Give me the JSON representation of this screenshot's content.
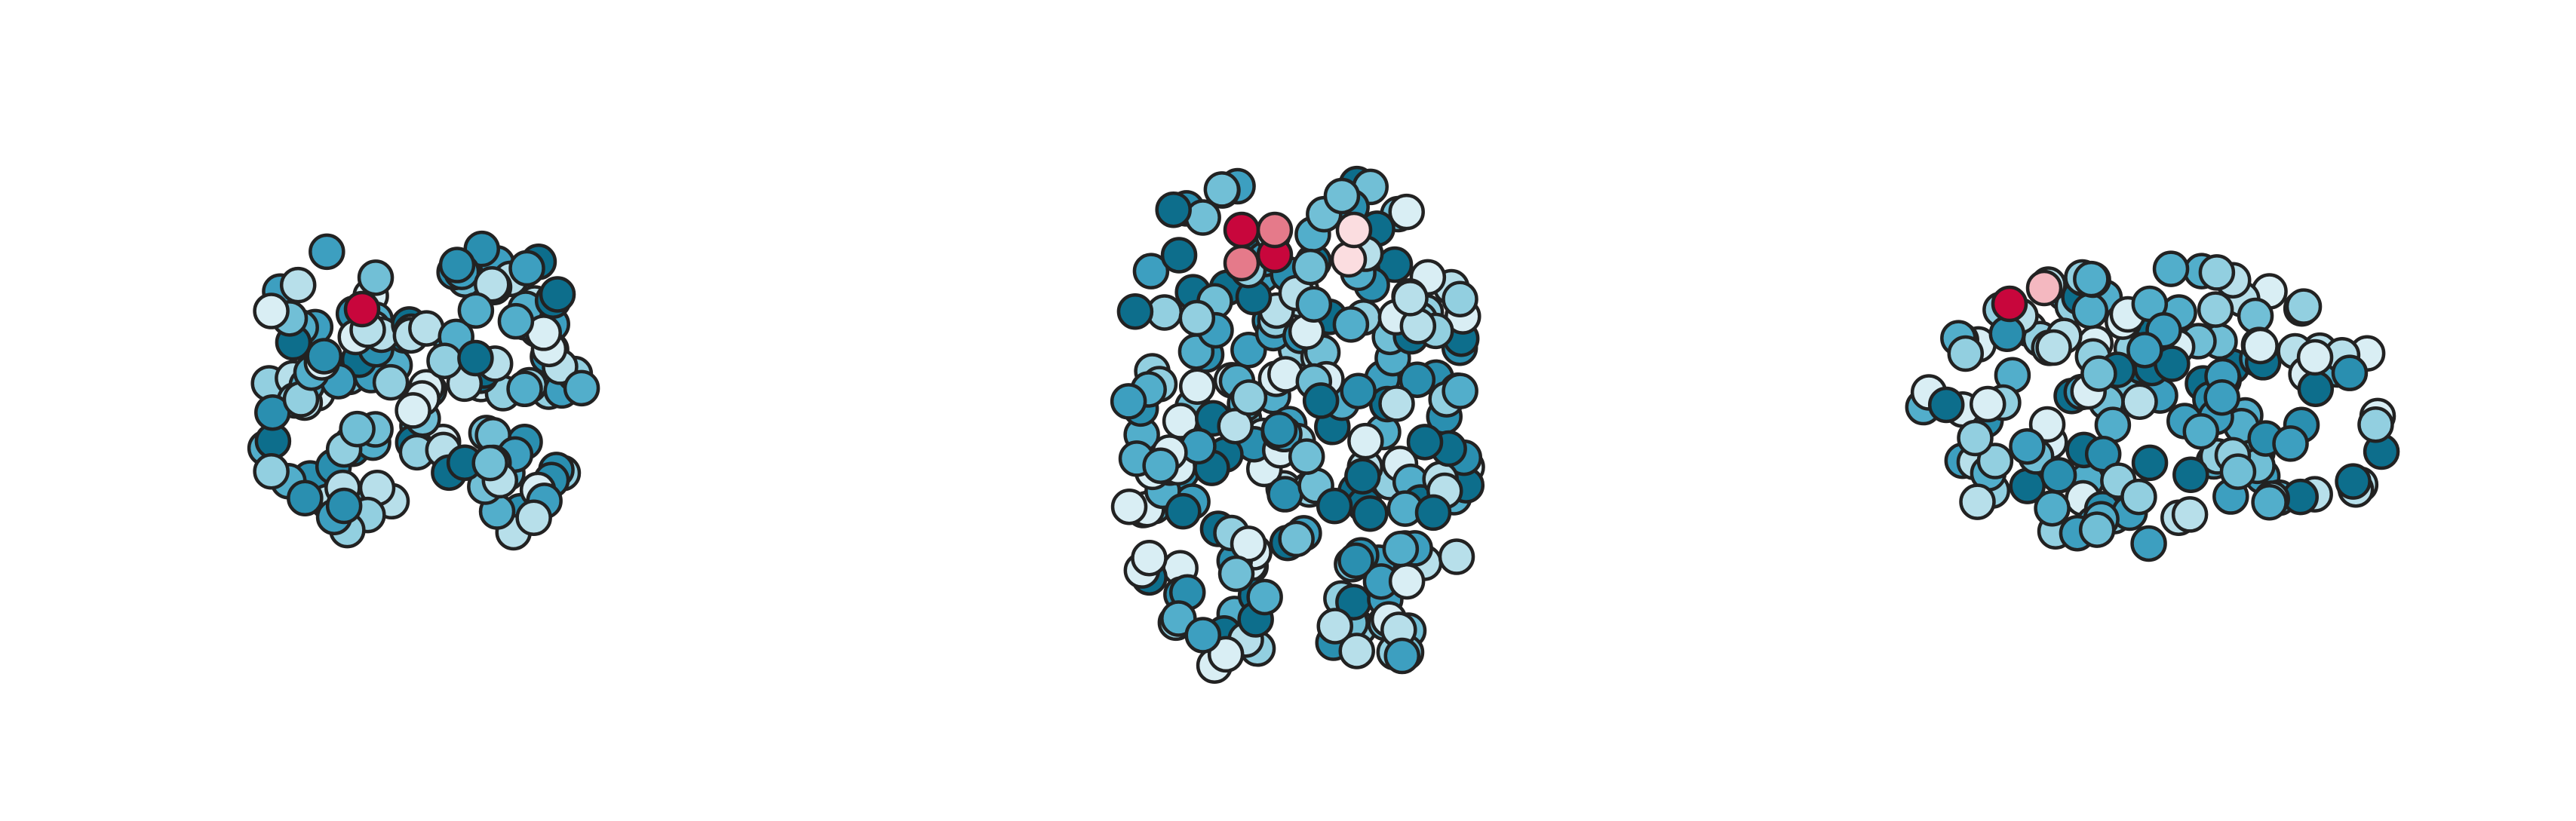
{
  "node_colors": {
    "blue": [
      "#0d6e8c",
      "#2a8fb0",
      "#3d9fc0",
      "#52aecb",
      "#71bfd6",
      "#92cfe0",
      "#b7dfea",
      "#d9eef4"
    ],
    "red": [
      "#c8063c",
      "#e57a8a",
      "#f4b8c0",
      "#fbdde0"
    ]
  }
}
